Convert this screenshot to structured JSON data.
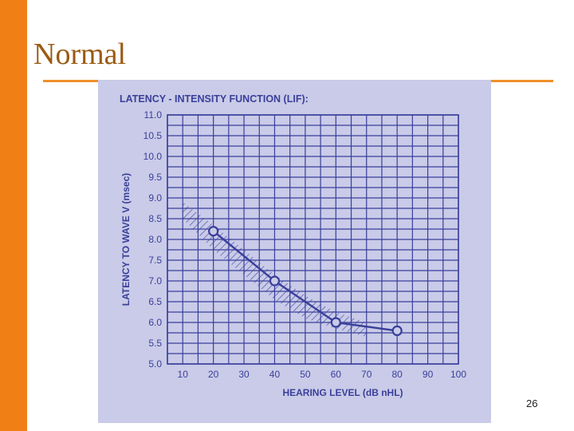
{
  "slide": {
    "title": "Normal",
    "page_number": "26"
  },
  "colors": {
    "accent_bar": "#f07f16",
    "title_text": "#9a5a12",
    "chart_ink": "#3a3f9a",
    "photo_background": "#c9cbe8"
  },
  "chart_data": {
    "type": "line",
    "title": "LATENCY - INTENSITY FUNCTION (LIF):",
    "xlabel": "HEARING LEVEL (dB nHL)",
    "ylabel": "LATENCY TO WAVE V (msec)",
    "xlim": [
      5,
      100
    ],
    "ylim": [
      5.0,
      11.0
    ],
    "x_ticks": [
      10,
      20,
      30,
      40,
      50,
      60,
      70,
      80,
      90,
      100
    ],
    "x_tick_labels": [
      "10",
      "20",
      "30",
      "40",
      "50",
      "60",
      "70",
      "80",
      "90",
      "100"
    ],
    "y_ticks": [
      5.0,
      5.5,
      6.0,
      6.5,
      7.0,
      7.5,
      8.0,
      8.5,
      9.0,
      9.5,
      10.0,
      10.5,
      11.0
    ],
    "y_tick_labels": [
      "5.0",
      "5.5",
      "6.0",
      "6.5",
      "7.0",
      "7.5",
      "8.0",
      "8.5",
      "9.0",
      "9.5",
      "10.0",
      "10.5",
      "11.0"
    ],
    "grid": true,
    "series": [
      {
        "x": [
          20,
          40,
          60,
          80
        ],
        "y": [
          8.2,
          7.0,
          6.0,
          5.8
        ],
        "marker": "open-circle"
      }
    ],
    "normal_range_band": {
      "style": "hatched",
      "x": [
        10,
        20,
        30,
        40,
        50,
        60,
        70
      ],
      "upper": [
        8.9,
        8.35,
        7.75,
        7.15,
        6.65,
        6.25,
        6.0
      ],
      "lower": [
        8.5,
        7.75,
        7.15,
        6.55,
        6.1,
        5.85,
        5.65
      ]
    }
  }
}
